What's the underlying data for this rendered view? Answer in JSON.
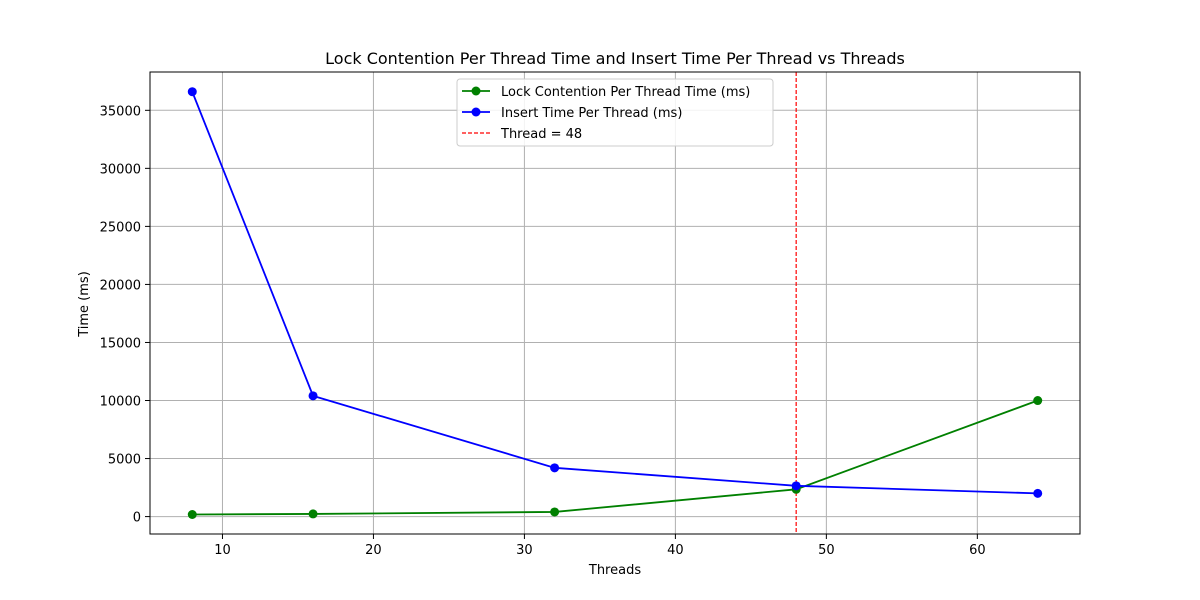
{
  "chart_data": {
    "type": "line",
    "title": "Lock Contention Per Thread Time and Insert Time Per Thread vs Threads",
    "xlabel": "Threads",
    "ylabel": "Time (ms)",
    "xlim": [
      5.2,
      66.8
    ],
    "ylim": [
      -1500,
      38300
    ],
    "xticks": [
      10,
      20,
      30,
      40,
      50,
      60
    ],
    "yticks": [
      0,
      5000,
      10000,
      15000,
      20000,
      25000,
      30000,
      35000
    ],
    "grid": true,
    "legend_position": "top-center",
    "series": [
      {
        "name": "Lock Contention Per Thread Time (ms)",
        "color": "#008000",
        "marker": "circle",
        "x": [
          8,
          16,
          32,
          48,
          64
        ],
        "y": [
          180,
          230,
          400,
          2350,
          10000
        ]
      },
      {
        "name": "Insert Time Per Thread (ms)",
        "color": "#0000ff",
        "marker": "circle",
        "x": [
          8,
          16,
          32,
          48,
          64
        ],
        "y": [
          36600,
          10400,
          4200,
          2650,
          2000
        ]
      }
    ],
    "reference_lines": [
      {
        "name": "Thread = 48",
        "orientation": "vertical",
        "x": 48,
        "color": "#ff0000",
        "style": "dashed"
      }
    ]
  }
}
